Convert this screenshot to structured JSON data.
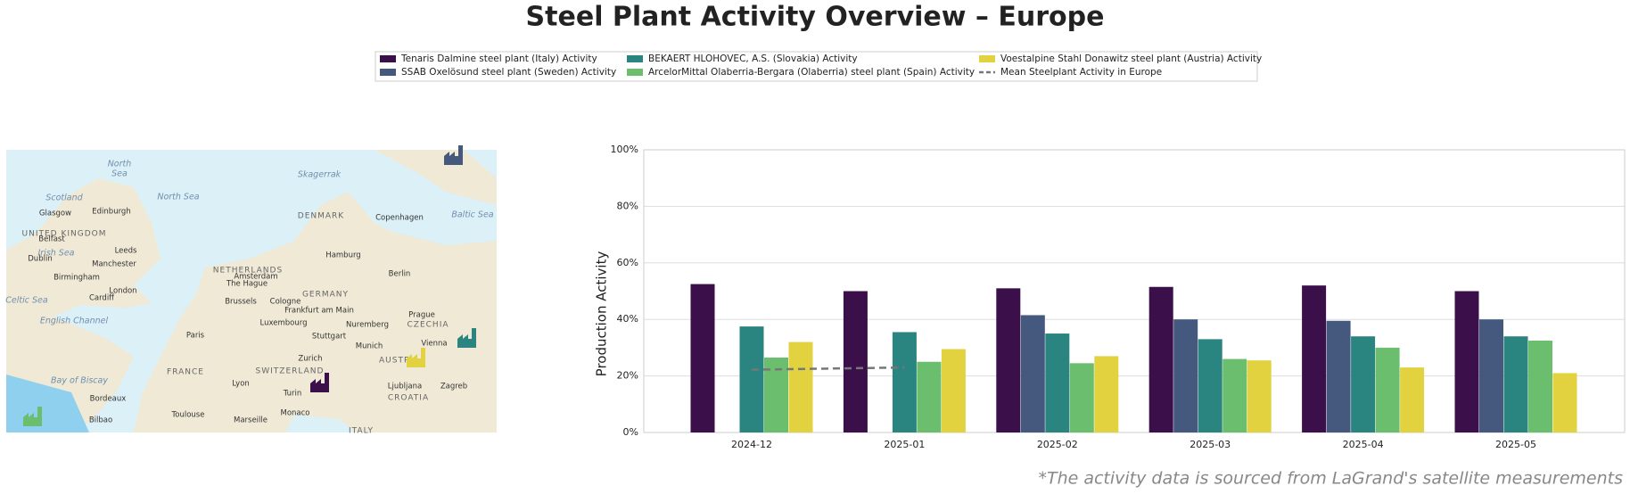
{
  "chart_data": {
    "type": "bar",
    "title": "Steel Plant Activity Overview – Europe",
    "ylabel": "Production Activity",
    "footnote": "*The activity data is sourced from LaGrand's satellite measurements",
    "categories": [
      "2024-12",
      "2025-01",
      "2025-02",
      "2025-03",
      "2025-04",
      "2025-05"
    ],
    "ylim": [
      0,
      100
    ],
    "yticks": [
      {
        "value": 0,
        "label": "0%"
      },
      {
        "value": 20,
        "label": "20%"
      },
      {
        "value": 40,
        "label": "40%"
      },
      {
        "value": 60,
        "label": "60%"
      },
      {
        "value": 80,
        "label": "80%"
      },
      {
        "value": 100,
        "label": "100%"
      }
    ],
    "grid": true,
    "legend": "top",
    "series": [
      {
        "name": "Tenaris Dalmine steel plant (Italy) Activity",
        "color": "#3b0f4a",
        "values": [
          52.5,
          50,
          51,
          51.5,
          52,
          50
        ]
      },
      {
        "name": "SSAB Oxelösund steel plant (Sweden) Activity",
        "color": "#45587e",
        "values": [
          null,
          null,
          41.5,
          40,
          39.5,
          40
        ]
      },
      {
        "name": "BEKAERT HLOHOVEC, A.S. (Slovakia) Activity",
        "color": "#2a8480",
        "values": [
          37.5,
          35.5,
          35,
          33,
          34,
          34
        ]
      },
      {
        "name": "ArcelorMittal Olaberria-Bergara (Olaberria) steel plant (Spain) Activity",
        "color": "#6abe6e",
        "values": [
          26.5,
          25,
          24.5,
          26,
          30,
          32.5
        ]
      },
      {
        "name": "Voestalpine Stahl Donawitz steel plant (Austria) Activity",
        "color": "#e2d240",
        "values": [
          32,
          29.5,
          27,
          25.5,
          23,
          21
        ]
      },
      {
        "name": "Mean Steelplant Activity in Europe",
        "color": "#777777",
        "type": "line",
        "dashed": true,
        "values": [
          22.2,
          23,
          null,
          null,
          null,
          null
        ]
      }
    ]
  },
  "map": {
    "labels": [
      "North",
      "Sea",
      "North Sea",
      "Skagerrak",
      "Scotland",
      "Edinburgh",
      "Glasgow",
      "UNITED KINGDOM",
      "DENMARK",
      "Copenhagen",
      "Baltic Sea",
      "Belfast",
      "Irish Sea",
      "Dublin",
      "Leeds",
      "Hamburg",
      "Manchester",
      "Birmingham",
      "NETHERLANDS",
      "Amsterdam",
      "Berlin",
      "London",
      "The Hague",
      "GERMANY",
      "Cardiff",
      "Celtic Sea",
      "Brussels",
      "Cologne",
      "Frankfurt am Main",
      "Prague",
      "English Channel",
      "Luxembourg",
      "Nuremberg",
      "CZECHIA",
      "Paris",
      "Stuttgart",
      "Munich",
      "Vienna",
      "Zurich",
      "AUSTRIA",
      "FRANCE",
      "SWITZERLAND",
      "Lyon",
      "Ljubljana",
      "Zagreb",
      "Turin",
      "CROATIA",
      "Bay of Biscay",
      "Bordeaux",
      "Monaco",
      "Toulouse",
      "Marseille",
      "Bilbao",
      "ITALY"
    ]
  }
}
